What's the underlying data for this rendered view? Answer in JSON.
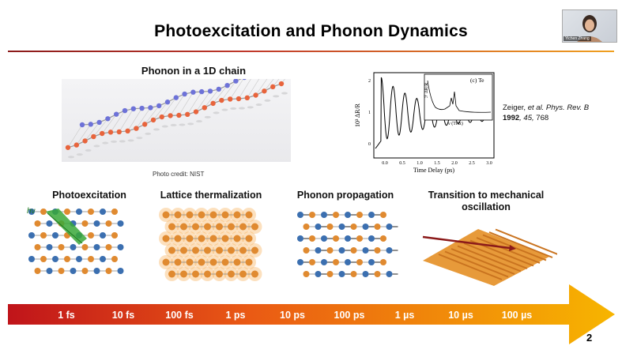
{
  "slide": {
    "title": "Photoexcitation and Phonon Dynamics",
    "page_number": "2"
  },
  "webcam": {
    "name_label": "Yichen Zhang"
  },
  "chain_figure": {
    "title": "Phonon in a 1D chain",
    "credit": "Photo credit: NIST"
  },
  "plot_figure": {
    "inset_label": "(c) Te",
    "xlabel": "Time Delay (ps)",
    "ylabel": "10³ ΔR/R",
    "inset_xlabel": "ν (THz)",
    "inset_ylabel": "ℱ ΔR/R",
    "x_ticks": [
      "0.0",
      "0.5",
      "1.0",
      "1.5",
      "2.0",
      "2.5",
      "3.0"
    ],
    "y_ticks": [
      "2",
      "1",
      "0"
    ]
  },
  "citation": {
    "authors": "Zeiger, ",
    "etal": "et al. Phys. Rev. B",
    "year": "1992",
    "volume": ", 45,",
    "page": " 768"
  },
  "stages": [
    {
      "label": "Photoexcitation",
      "annotation": "hν"
    },
    {
      "label": "Lattice thermalization"
    },
    {
      "label": "Phonon propagation"
    },
    {
      "label": "Transition to mechanical oscillation"
    }
  ],
  "timeline": {
    "ticks": [
      "1 fs",
      "10 fs",
      "100 fs",
      "1 ps",
      "10 ps",
      "100 ps",
      "1 µs",
      "10 µs",
      "100 µs"
    ],
    "gradient_start": "#c0141a",
    "gradient_end": "#f7b500"
  }
}
